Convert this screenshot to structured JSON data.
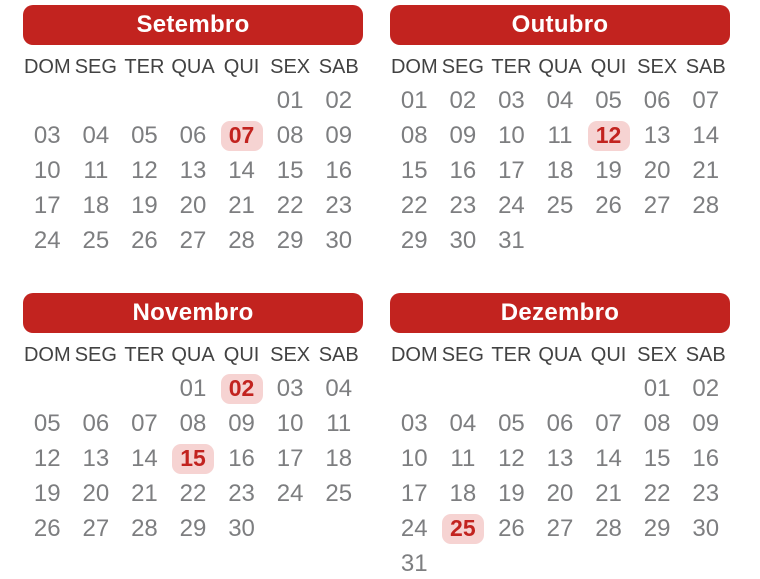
{
  "colors": {
    "header_background": "#c2231f",
    "header_text": "#ffffff",
    "weekday_text": "#424242",
    "date_text": "#7d7e80",
    "holiday_background": "#f6d3d2",
    "holiday_text": "#c2231f",
    "page_background": "#ffffff"
  },
  "weekdays": [
    "DOM",
    "SEG",
    "TER",
    "QUA",
    "QUI",
    "SEX",
    "SAB"
  ],
  "months": [
    {
      "name": "Setembro",
      "weeks": [
        [
          "",
          "",
          "",
          "",
          "",
          "01",
          "02"
        ],
        [
          "03",
          "04",
          "05",
          "06",
          "07",
          "08",
          "09"
        ],
        [
          "10",
          "11",
          "12",
          "13",
          "14",
          "15",
          "16"
        ],
        [
          "17",
          "18",
          "19",
          "20",
          "21",
          "22",
          "23"
        ],
        [
          "24",
          "25",
          "26",
          "27",
          "28",
          "29",
          "30"
        ]
      ],
      "holidays": [
        "07"
      ]
    },
    {
      "name": "Outubro",
      "weeks": [
        [
          "01",
          "02",
          "03",
          "04",
          "05",
          "06",
          "07"
        ],
        [
          "08",
          "09",
          "10",
          "11",
          "12",
          "13",
          "14"
        ],
        [
          "15",
          "16",
          "17",
          "18",
          "19",
          "20",
          "21"
        ],
        [
          "22",
          "23",
          "24",
          "25",
          "26",
          "27",
          "28"
        ],
        [
          "29",
          "30",
          "31",
          "",
          "",
          "",
          ""
        ]
      ],
      "holidays": [
        "12"
      ]
    },
    {
      "name": "Novembro",
      "weeks": [
        [
          "",
          "",
          "",
          "01",
          "02",
          "03",
          "04"
        ],
        [
          "05",
          "06",
          "07",
          "08",
          "09",
          "10",
          "11"
        ],
        [
          "12",
          "13",
          "14",
          "15",
          "16",
          "17",
          "18"
        ],
        [
          "19",
          "20",
          "21",
          "22",
          "23",
          "24",
          "25"
        ],
        [
          "26",
          "27",
          "28",
          "29",
          "30",
          "",
          ""
        ]
      ],
      "holidays": [
        "02",
        "15"
      ]
    },
    {
      "name": "Dezembro",
      "weeks": [
        [
          "",
          "",
          "",
          "",
          "",
          "01",
          "02"
        ],
        [
          "03",
          "04",
          "05",
          "06",
          "07",
          "08",
          "09"
        ],
        [
          "10",
          "11",
          "12",
          "13",
          "14",
          "15",
          "16"
        ],
        [
          "17",
          "18",
          "19",
          "20",
          "21",
          "22",
          "23"
        ],
        [
          "24",
          "25",
          "26",
          "27",
          "28",
          "29",
          "30"
        ],
        [
          "31",
          "",
          "",
          "",
          "",
          "",
          ""
        ]
      ],
      "holidays": [
        "25"
      ]
    }
  ]
}
